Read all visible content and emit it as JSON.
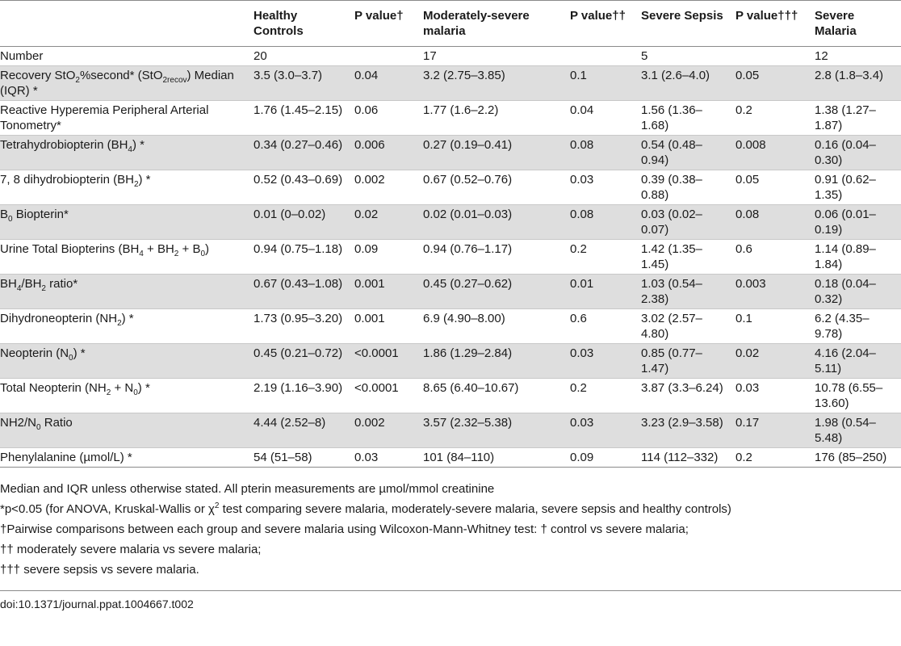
{
  "columns": [
    {
      "label": "",
      "subs": []
    },
    {
      "label": "Healthy Controls"
    },
    {
      "label": "P value†"
    },
    {
      "label": "Moderately-severe malaria"
    },
    {
      "label": "P value††"
    },
    {
      "label": "Severe Sepsis"
    },
    {
      "label": "P value†††"
    },
    {
      "label": "Severe Malaria"
    }
  ],
  "rows": [
    {
      "label": [
        {
          "t": "Number"
        }
      ],
      "cells": [
        "20",
        "",
        "17",
        "",
        "5",
        "",
        "12"
      ]
    },
    {
      "label": [
        {
          "t": "Recovery StO"
        },
        {
          "sub": "2"
        },
        {
          "t": "%second* (StO"
        },
        {
          "sub": "2recov"
        },
        {
          "t": ") Median (IQR) *"
        }
      ],
      "cells": [
        "3.5 (3.0–3.7)",
        "0.04",
        "3.2 (2.75–3.85)",
        "0.1",
        "3.1 (2.6–4.0)",
        "0.05",
        "2.8 (1.8–3.4)"
      ]
    },
    {
      "label": [
        {
          "t": "Reactive Hyperemia Peripheral Arterial Tonometry*"
        }
      ],
      "cells": [
        "1.76 (1.45–2.15)",
        "0.06",
        "1.77 (1.6–2.2)",
        "0.04",
        "1.56 (1.36–1.68)",
        "0.2",
        "1.38 (1.27–1.87)"
      ]
    },
    {
      "label": [
        {
          "t": "Tetrahydrobiopterin (BH"
        },
        {
          "sub": "4"
        },
        {
          "t": ") *"
        }
      ],
      "cells": [
        "0.34 (0.27–0.46)",
        "0.006",
        "0.27 (0.19–0.41)",
        "0.08",
        "0.54 (0.48–0.94)",
        "0.008",
        "0.16 (0.04–0.30)"
      ]
    },
    {
      "label": [
        {
          "t": "7, 8 dihydrobiopterin (BH"
        },
        {
          "sub": "2"
        },
        {
          "t": ") *"
        }
      ],
      "cells": [
        "0.52 (0.43–0.69)",
        "0.002",
        "0.67 (0.52–0.76)",
        "0.03",
        "0.39 (0.38–0.88)",
        "0.05",
        "0.91 (0.62–1.35)"
      ]
    },
    {
      "label": [
        {
          "t": "B"
        },
        {
          "sub": "0"
        },
        {
          "t": " Biopterin*"
        }
      ],
      "cells": [
        "0.01 (0–0.02)",
        "0.02",
        "0.02 (0.01–0.03)",
        "0.08",
        "0.03 (0.02–0.07)",
        "0.08",
        "0.06 (0.01–0.19)"
      ]
    },
    {
      "label": [
        {
          "t": "Urine Total Biopterins (BH"
        },
        {
          "sub": "4"
        },
        {
          "t": " + BH"
        },
        {
          "sub": "2"
        },
        {
          "t": " + B"
        },
        {
          "sub": "0"
        },
        {
          "t": ")"
        }
      ],
      "cells": [
        "0.94 (0.75–1.18)",
        "0.09",
        "0.94 (0.76–1.17)",
        "0.2",
        "1.42 (1.35–1.45)",
        "0.6",
        "1.14 (0.89–1.84)"
      ]
    },
    {
      "label": [
        {
          "t": "BH"
        },
        {
          "sub": "4"
        },
        {
          "t": "/BH"
        },
        {
          "sub": "2"
        },
        {
          "t": " ratio*"
        }
      ],
      "cells": [
        "0.67 (0.43–1.08)",
        "0.001",
        "0.45 (0.27–0.62)",
        "0.01",
        "1.03 (0.54–2.38)",
        "0.003",
        "0.18 (0.04–0.32)"
      ]
    },
    {
      "label": [
        {
          "t": "Dihydroneopterin (NH"
        },
        {
          "sub": "2"
        },
        {
          "t": ") *"
        }
      ],
      "cells": [
        "1.73 (0.95–3.20)",
        "0.001",
        "6.9 (4.90–8.00)",
        "0.6",
        "3.02 (2.57–4.80)",
        "0.1",
        "6.2 (4.35–9.78)"
      ]
    },
    {
      "label": [
        {
          "t": "Neopterin (N"
        },
        {
          "sub": "0"
        },
        {
          "t": ") *"
        }
      ],
      "cells": [
        "0.45 (0.21–0.72)",
        "<0.0001",
        "1.86 (1.29–2.84)",
        "0.03",
        "0.85 (0.77–1.47)",
        "0.02",
        "4.16 (2.04–5.11)"
      ]
    },
    {
      "label": [
        {
          "t": "Total Neopterin (NH"
        },
        {
          "sub": "2"
        },
        {
          "t": " + N"
        },
        {
          "sub": "0"
        },
        {
          "t": ") *"
        }
      ],
      "cells": [
        "2.19 (1.16–3.90)",
        "<0.0001",
        "8.65 (6.40–10.67)",
        "0.2",
        "3.87 (3.3–6.24)",
        "0.03",
        "10.78 (6.55–13.60)"
      ]
    },
    {
      "label": [
        {
          "t": "NH2/N"
        },
        {
          "sub": "0"
        },
        {
          "t": " Ratio"
        }
      ],
      "cells": [
        "4.44 (2.52–8)",
        "0.002",
        "3.57 (2.32–5.38)",
        "0.03",
        "3.23 (2.9–3.58)",
        "0.17",
        "1.98 (0.54–5.48)"
      ]
    },
    {
      "label": [
        {
          "t": "Phenylalanine (µmol/L) *"
        }
      ],
      "cells": [
        "54 (51–58)",
        "0.03",
        "101 (84–110)",
        "0.09",
        "114 (112–332)",
        "0.2",
        "176 (85–250)"
      ]
    }
  ],
  "notes": [
    [
      {
        "t": "Median and IQR unless otherwise stated. All pterin measurements are µmol/mmol creatinine"
      }
    ],
    [
      {
        "t": "*p<0.05 (for ANOVA, Kruskal-Wallis or χ"
      },
      {
        "sup": "2"
      },
      {
        "t": " test comparing severe malaria, moderately-severe malaria, severe sepsis and healthy controls)"
      }
    ],
    [
      {
        "t": "†Pairwise comparisons between each group and severe malaria using Wilcoxon-Mann-Whitney test: † control vs severe malaria;"
      }
    ],
    [
      {
        "t": "†† moderately severe malaria vs severe malaria;"
      }
    ],
    [
      {
        "t": "††† severe sepsis vs severe malaria."
      }
    ]
  ],
  "doi": "doi:10.1371/journal.ppat.1004667.t002"
}
